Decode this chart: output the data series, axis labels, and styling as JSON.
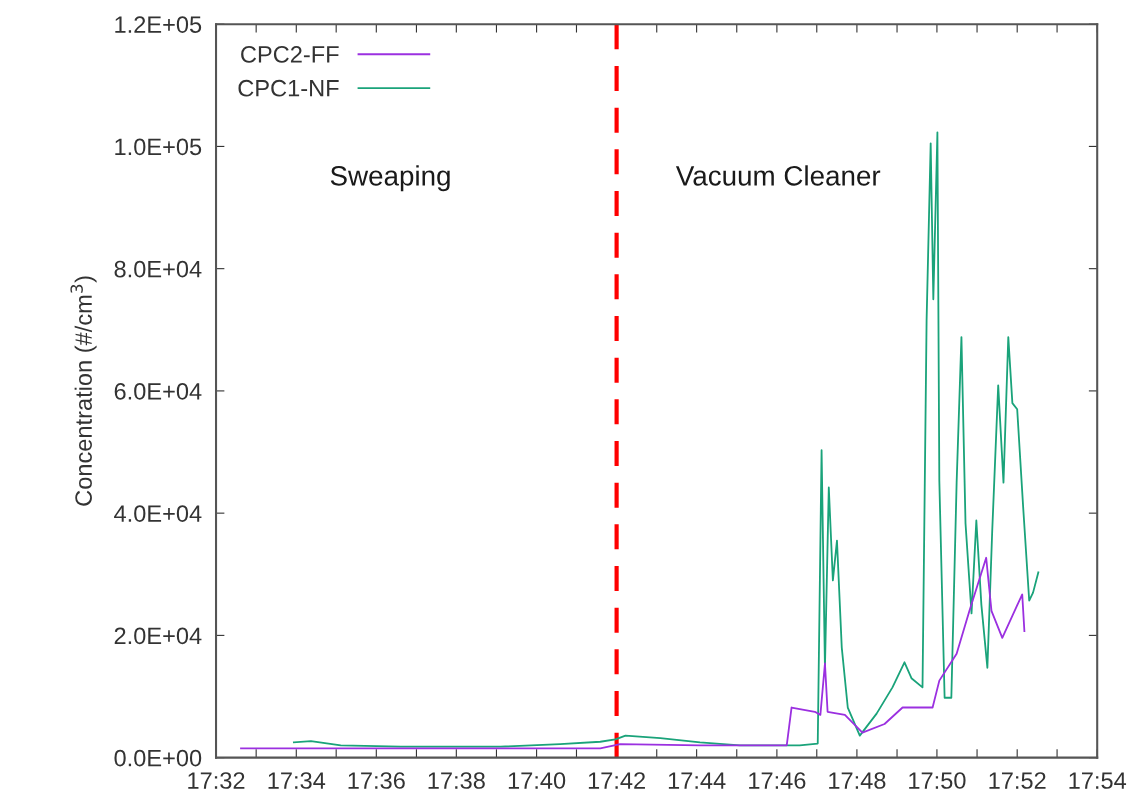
{
  "chart_data": {
    "type": "line",
    "ylabel": "Concentration (#/cm$^{3}$)",
    "xlim": [
      17.5333,
      17.9
    ],
    "ylim": [
      0,
      120000
    ],
    "xticks": [
      {
        "value": 17.5333,
        "label": "17:32"
      },
      {
        "value": 17.55,
        "label": null
      },
      {
        "value": 17.5667,
        "label": "17:34"
      },
      {
        "value": 17.5833,
        "label": null
      },
      {
        "value": 17.6,
        "label": "17:36"
      },
      {
        "value": 17.6167,
        "label": null
      },
      {
        "value": 17.6333,
        "label": "17:38"
      },
      {
        "value": 17.65,
        "label": null
      },
      {
        "value": 17.6667,
        "label": "17:40"
      },
      {
        "value": 17.6833,
        "label": null
      },
      {
        "value": 17.7,
        "label": "17:42"
      },
      {
        "value": 17.7167,
        "label": null
      },
      {
        "value": 17.7333,
        "label": "17:44"
      },
      {
        "value": 17.75,
        "label": null
      },
      {
        "value": 17.7667,
        "label": "17:46"
      },
      {
        "value": 17.7833,
        "label": null
      },
      {
        "value": 17.8,
        "label": "17:48"
      },
      {
        "value": 17.8167,
        "label": null
      },
      {
        "value": 17.8333,
        "label": "17:50"
      },
      {
        "value": 17.85,
        "label": null
      },
      {
        "value": 17.8667,
        "label": "17:52"
      },
      {
        "value": 17.8833,
        "label": null
      },
      {
        "value": 17.9,
        "label": "17:54"
      }
    ],
    "yticks": [
      {
        "value": 0,
        "label": "0.0E+00"
      },
      {
        "value": 20000,
        "label": "2.0E+04"
      },
      {
        "value": 40000,
        "label": "4.0E+04"
      },
      {
        "value": 60000,
        "label": "6.0E+04"
      },
      {
        "value": 80000,
        "label": "8.0E+04"
      },
      {
        "value": 100000,
        "label": "1.0E+05"
      },
      {
        "value": 120000,
        "label": "1.2E+05"
      }
    ],
    "grid": false,
    "legend": "top left",
    "marker": "none",
    "line_style": "solid",
    "series": [
      {
        "name": "CPC2-FF",
        "color": "#9b30e0",
        "x": [
          17.5437,
          17.6102,
          17.6932,
          17.7015,
          17.7347,
          17.7708,
          17.7728,
          17.7825,
          17.7848,
          17.7867,
          17.7878,
          17.795,
          17.8023,
          17.8115,
          17.819,
          17.8315,
          17.8343,
          17.8415,
          17.8468,
          17.8538,
          17.856,
          17.8605,
          17.8663,
          17.8688,
          17.8697
        ],
        "values": [
          1500,
          1500,
          1500,
          2200,
          2000,
          2000,
          8200,
          7500,
          7000,
          15400,
          7500,
          7000,
          4100,
          5500,
          8200,
          8200,
          12600,
          17000,
          24000,
          32700,
          24000,
          19600,
          24600,
          26700,
          20700
        ]
      },
      {
        "name": "CPC1-NF",
        "color": "#1aa37a",
        "x": [
          17.5657,
          17.5728,
          17.5852,
          17.6102,
          17.6517,
          17.6765,
          17.6932,
          17.6995,
          17.7037,
          17.7182,
          17.7347,
          17.7513,
          17.7762,
          17.7837,
          17.7853,
          17.7867,
          17.7883,
          17.79,
          17.7917,
          17.7937,
          17.7962,
          17.8012,
          17.8082,
          17.8148,
          17.8198,
          17.8227,
          17.8273,
          17.829,
          17.8307,
          17.8318,
          17.8335,
          17.8343,
          17.8365,
          17.8393,
          17.8415,
          17.8435,
          17.8452,
          17.8477,
          17.8497,
          17.8518,
          17.8543,
          17.8563,
          17.8588,
          17.861,
          17.863,
          17.8647,
          17.8667,
          17.8692,
          17.8717,
          17.8733,
          17.8755
        ],
        "values": [
          2500,
          2700,
          2000,
          1800,
          1800,
          2200,
          2600,
          3000,
          3600,
          3200,
          2500,
          2000,
          2000,
          2300,
          50300,
          14700,
          44200,
          29000,
          35500,
          18000,
          8200,
          3600,
          7200,
          11500,
          15600,
          13000,
          11500,
          71500,
          100500,
          75000,
          102300,
          45300,
          9800,
          9800,
          45000,
          68800,
          38300,
          23600,
          38800,
          25000,
          14700,
          37000,
          60900,
          45000,
          68800,
          58000,
          57000,
          40900,
          25700,
          27000,
          30300
        ]
      }
    ],
    "ref_lines": [
      {
        "axis": "x",
        "value": 17.7,
        "color": "#ff0000",
        "line_style": "dashed"
      }
    ],
    "annotations": [
      "Sweaping",
      "Vacuum Cleaner"
    ]
  }
}
